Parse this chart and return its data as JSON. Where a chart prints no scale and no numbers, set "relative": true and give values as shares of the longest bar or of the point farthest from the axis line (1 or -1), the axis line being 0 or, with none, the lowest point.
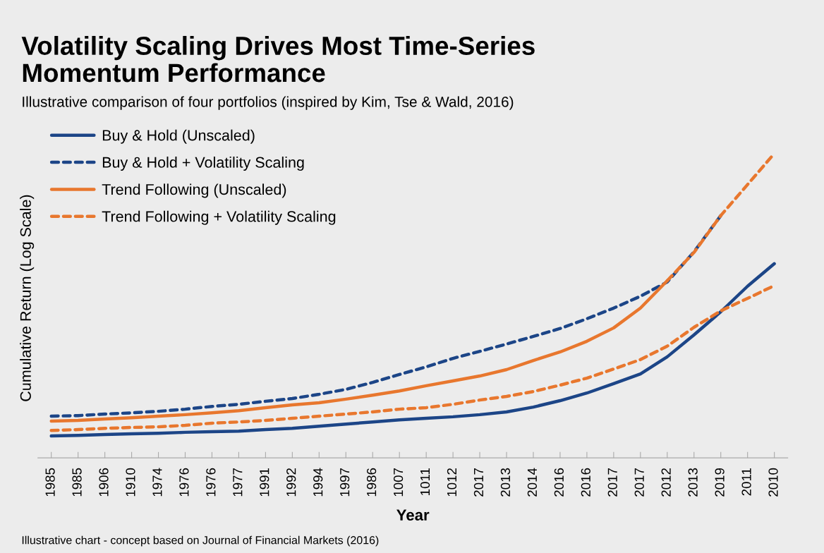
{
  "chart_data": {
    "type": "line",
    "title": "Volatility Scaling Drives Most Time-Series\nMomentum Performance",
    "subtitle": "Illustrative comparison of four portfolios (inspired by Kim, Tse & Wald, 2016)",
    "xlabel": "Year",
    "ylabel": "Cumulative Return (Log Scale)",
    "relative": true,
    "legend": "top left",
    "grid": false,
    "categories": [
      "1985",
      "1985",
      "1906",
      "1910",
      "1974",
      "1976",
      "1976",
      "1977",
      "1991",
      "1992",
      "1994",
      "1997",
      "1986",
      "1007",
      "1011",
      "1012",
      "2017",
      "2013",
      "2014",
      "2016",
      "2016",
      "2017",
      "2017",
      "2012",
      "2013",
      "2019",
      "2011",
      "2010"
    ],
    "series": [
      {
        "name": "Buy & Hold (Unscaled)",
        "color": "#1c4587",
        "line_style": "solid",
        "values": [
          0.072,
          0.074,
          0.077,
          0.079,
          0.081,
          0.084,
          0.086,
          0.088,
          0.093,
          0.097,
          0.104,
          0.111,
          0.118,
          0.125,
          0.13,
          0.135,
          0.142,
          0.151,
          0.167,
          0.188,
          0.213,
          0.244,
          0.276,
          0.332,
          0.404,
          0.48,
          0.564,
          0.638
        ]
      },
      {
        "name": "Buy & Hold + Volatility Scaling",
        "color": "#1c4587",
        "line_style": "dashed",
        "values": [
          0.137,
          0.139,
          0.144,
          0.148,
          0.153,
          0.16,
          0.169,
          0.176,
          0.186,
          0.195,
          0.209,
          0.225,
          0.248,
          0.274,
          0.299,
          0.327,
          0.35,
          0.374,
          0.399,
          0.425,
          0.457,
          0.492,
          0.531,
          0.578,
          0.677,
          0.796,
          null,
          null
        ]
      },
      {
        "name": "Trend Following (Unscaled)",
        "color": "#e8772e",
        "line_style": "solid",
        "values": [
          0.121,
          0.123,
          0.128,
          0.132,
          0.137,
          0.142,
          0.148,
          0.155,
          0.165,
          0.174,
          0.181,
          0.193,
          0.206,
          0.22,
          0.237,
          0.253,
          0.269,
          0.29,
          0.32,
          0.348,
          0.383,
          0.427,
          0.492,
          0.582,
          null,
          null,
          null,
          null
        ]
      },
      {
        "name": "Trend Following + Volatility Scaling",
        "color": "#e8772e",
        "line_style": "dashed",
        "values": [
          0.09,
          0.093,
          0.097,
          0.1,
          0.102,
          0.107,
          0.114,
          0.118,
          0.123,
          0.13,
          0.137,
          0.144,
          0.151,
          0.16,
          0.165,
          0.176,
          0.19,
          0.202,
          0.218,
          0.239,
          0.262,
          0.292,
          0.323,
          0.367,
          0.429,
          0.483,
          0.524,
          0.566
        ]
      },
      {
        "color": "#e8772e",
        "line_style": "dashed",
        "values": [
          null,
          null,
          null,
          null,
          null,
          null,
          null,
          null,
          null,
          null,
          null,
          null,
          null,
          null,
          null,
          null,
          null,
          null,
          null,
          null,
          null,
          null,
          null,
          0.582,
          0.675,
          0.796,
          0.898,
          1.0
        ]
      }
    ],
    "annotations": [
      "Illustrative chart - concept based on Journal of Financial Markets (2016)"
    ]
  }
}
